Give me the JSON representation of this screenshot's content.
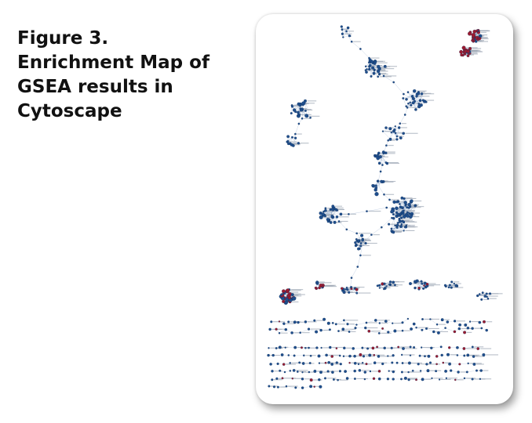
{
  "figure": {
    "caption_lines": [
      "Figure 3.",
      "Enrichment Map of",
      "GSEA results in",
      "Cytoscape"
    ]
  },
  "network": {
    "colors": {
      "positive_node": "#1f4e8c",
      "negative_node": "#9b1b30",
      "edge": "#7d9bc4",
      "label": "#9aa4b2",
      "card_background": "#ffffff"
    },
    "node_label_text": "illegible (sub-pixel gene-set names)"
  }
}
